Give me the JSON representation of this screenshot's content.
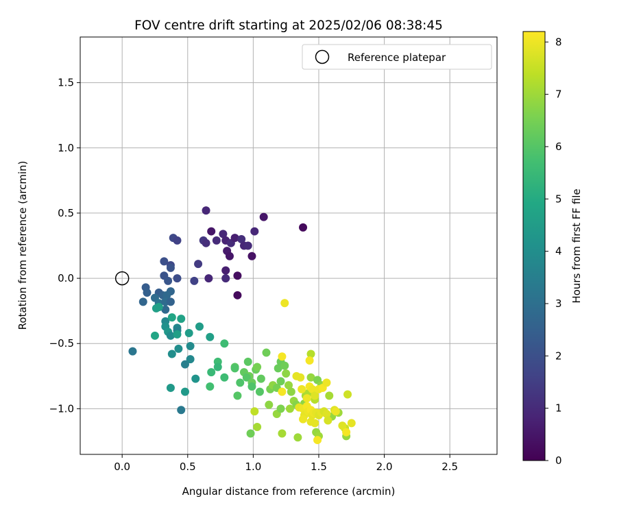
{
  "chart_data": {
    "type": "scatter",
    "title": "FOV centre drift starting at 2025/02/06 08:38:45",
    "xlabel": "Angular distance from reference (arcmin)",
    "ylabel": "Rotation from reference (arcmin)",
    "xlim": [
      -0.32,
      2.86
    ],
    "ylim": [
      -1.35,
      1.85
    ],
    "xticks": [
      "0.0",
      "0.5",
      "1.0",
      "1.5",
      "2.0",
      "2.5"
    ],
    "xtick_values": [
      0.0,
      0.5,
      1.0,
      1.5,
      2.0,
      2.5
    ],
    "yticks": [
      "−1.0",
      "−0.5",
      "0.0",
      "0.5",
      "1.0",
      "1.5"
    ],
    "ytick_values": [
      -1.0,
      -0.5,
      0.0,
      0.5,
      1.0,
      1.5
    ],
    "grid": true,
    "legend": {
      "placement": "top-right",
      "entries": [
        "Reference platepar"
      ]
    },
    "reference_point": {
      "name": "Reference platepar",
      "x": 0.0,
      "y": 0.0
    },
    "colorbar": {
      "label": "Hours from first FF file",
      "colormap": "viridis",
      "range": [
        0,
        8.2
      ],
      "ticks": [
        "0",
        "1",
        "2",
        "3",
        "4",
        "5",
        "6",
        "7",
        "8"
      ],
      "tick_values": [
        0,
        1,
        2,
        3,
        4,
        5,
        6,
        7,
        8
      ],
      "colormap_stops": [
        "#440154",
        "#482475",
        "#414487",
        "#355f8d",
        "#2a788e",
        "#21918c",
        "#22a884",
        "#44bf70",
        "#7ad151",
        "#bddf26",
        "#fde725"
      ]
    },
    "points": [
      [
        0.64,
        0.52,
        0.9
      ],
      [
        1.08,
        0.47,
        0.5
      ],
      [
        1.38,
        0.39,
        0.2
      ],
      [
        0.68,
        0.36,
        0.5
      ],
      [
        0.77,
        0.34,
        0.9
      ],
      [
        0.72,
        0.29,
        1.0
      ],
      [
        0.79,
        0.29,
        0.8
      ],
      [
        0.83,
        0.27,
        1.0
      ],
      [
        0.86,
        0.31,
        0.7
      ],
      [
        0.91,
        0.3,
        1.1
      ],
      [
        0.93,
        0.25,
        0.9
      ],
      [
        0.96,
        0.25,
        1.0
      ],
      [
        1.01,
        0.36,
        0.9
      ],
      [
        0.62,
        0.29,
        1.3
      ],
      [
        0.64,
        0.27,
        1.1
      ],
      [
        0.8,
        0.21,
        0.6
      ],
      [
        0.82,
        0.17,
        0.5
      ],
      [
        0.99,
        0.17,
        0.4
      ],
      [
        0.79,
        0.06,
        0.7
      ],
      [
        0.66,
        0.0,
        0.9
      ],
      [
        0.79,
        0.0,
        1.0
      ],
      [
        0.88,
        0.02,
        0.3
      ],
      [
        0.88,
        -0.13,
        0.2
      ],
      [
        0.58,
        0.11,
        1.4
      ],
      [
        0.55,
        -0.02,
        1.6
      ],
      [
        0.39,
        0.31,
        1.8
      ],
      [
        0.42,
        0.29,
        1.6
      ],
      [
        0.32,
        0.13,
        2.0
      ],
      [
        0.37,
        0.1,
        1.8
      ],
      [
        0.37,
        0.08,
        2.1
      ],
      [
        0.32,
        0.02,
        2.1
      ],
      [
        0.42,
        0.0,
        1.9
      ],
      [
        0.35,
        -0.02,
        2.2
      ],
      [
        0.18,
        -0.07,
        2.4
      ],
      [
        0.19,
        -0.11,
        2.5
      ],
      [
        0.16,
        -0.18,
        2.7
      ],
      [
        0.28,
        -0.11,
        2.4
      ],
      [
        0.25,
        -0.15,
        2.9
      ],
      [
        0.31,
        -0.13,
        2.6
      ],
      [
        0.37,
        -0.1,
        2.7
      ],
      [
        0.34,
        -0.13,
        2.8
      ],
      [
        0.28,
        -0.19,
        3.1
      ],
      [
        0.33,
        -0.18,
        2.9
      ],
      [
        0.37,
        -0.18,
        2.6
      ],
      [
        0.33,
        -0.24,
        2.8
      ],
      [
        0.28,
        -0.22,
        3.5
      ],
      [
        0.28,
        -0.22,
        4.6
      ],
      [
        0.26,
        -0.23,
        4.6
      ],
      [
        0.33,
        -0.33,
        3.8
      ],
      [
        0.38,
        -0.3,
        4.8
      ],
      [
        0.45,
        -0.31,
        4.7
      ],
      [
        0.33,
        -0.37,
        4.1
      ],
      [
        0.35,
        -0.41,
        4.3
      ],
      [
        0.42,
        -0.38,
        3.8
      ],
      [
        0.42,
        -0.4,
        3.6
      ],
      [
        0.37,
        -0.44,
        3.9
      ],
      [
        0.42,
        -0.43,
        4.6
      ],
      [
        0.25,
        -0.44,
        4.8
      ],
      [
        0.51,
        -0.42,
        4.5
      ],
      [
        0.59,
        -0.37,
        4.5
      ],
      [
        0.67,
        -0.45,
        4.6
      ],
      [
        0.52,
        -0.52,
        3.9
      ],
      [
        0.43,
        -0.54,
        4.0
      ],
      [
        0.38,
        -0.58,
        4.0
      ],
      [
        0.08,
        -0.56,
        3.2
      ],
      [
        0.52,
        -0.62,
        3.8
      ],
      [
        0.48,
        -0.66,
        3.5
      ],
      [
        0.56,
        -0.77,
        4.2
      ],
      [
        0.37,
        -0.84,
        4.4
      ],
      [
        0.48,
        -0.87,
        4.4
      ],
      [
        0.45,
        -1.01,
        3.3
      ],
      [
        0.73,
        -0.64,
        5.6
      ],
      [
        0.73,
        -0.68,
        5.4
      ],
      [
        0.68,
        -0.72,
        5.5
      ],
      [
        0.78,
        -0.5,
        5.6
      ],
      [
        0.67,
        -0.83,
        5.7
      ],
      [
        0.78,
        -0.76,
        5.6
      ],
      [
        0.86,
        -0.68,
        6.1
      ],
      [
        0.86,
        -0.69,
        5.9
      ],
      [
        0.9,
        -0.8,
        5.9
      ],
      [
        0.88,
        -0.9,
        6.0
      ],
      [
        0.96,
        -0.64,
        6.1
      ],
      [
        0.93,
        -0.72,
        6.2
      ],
      [
        0.97,
        -0.75,
        6.4
      ],
      [
        0.95,
        -0.76,
        6.0
      ],
      [
        0.99,
        -0.8,
        6.3
      ],
      [
        0.99,
        -0.83,
        5.9
      ],
      [
        1.02,
        -0.7,
        6.3
      ],
      [
        1.03,
        -0.68,
        6.5
      ],
      [
        1.05,
        -0.87,
        6.0
      ],
      [
        1.06,
        -0.77,
        6.2
      ],
      [
        1.1,
        -0.57,
        6.4
      ],
      [
        1.13,
        -0.85,
        6.5
      ],
      [
        1.15,
        -0.82,
        6.8
      ],
      [
        1.18,
        -0.84,
        6.5
      ],
      [
        1.21,
        -0.79,
        6.4
      ],
      [
        1.19,
        -0.69,
        6.3
      ],
      [
        1.21,
        -0.64,
        6.3
      ],
      [
        1.24,
        -0.67,
        6.4
      ],
      [
        1.25,
        -0.73,
        6.8
      ],
      [
        1.12,
        -0.97,
        6.8
      ],
      [
        1.18,
        -1.04,
        6.9
      ],
      [
        1.21,
        -1.0,
        6.6
      ],
      [
        1.27,
        -0.82,
        6.9
      ],
      [
        1.29,
        -0.87,
        6.8
      ],
      [
        1.31,
        -0.94,
        6.9
      ],
      [
        1.28,
        -1.0,
        7.0
      ],
      [
        1.33,
        -0.97,
        6.7
      ],
      [
        0.98,
        -1.19,
        6.4
      ],
      [
        1.01,
        -1.02,
        7.4
      ],
      [
        1.03,
        -1.14,
        7.1
      ],
      [
        1.22,
        -1.19,
        7.1
      ],
      [
        1.34,
        -1.22,
        7.0
      ],
      [
        1.39,
        -0.96,
        6.8
      ],
      [
        1.44,
        -0.58,
        7.3
      ],
      [
        1.4,
        -0.9,
        7.1
      ],
      [
        1.42,
        -0.88,
        7.2
      ],
      [
        1.44,
        -0.76,
        6.9
      ],
      [
        1.47,
        -0.93,
        7.3
      ],
      [
        1.49,
        -0.78,
        6.6
      ],
      [
        1.52,
        -0.82,
        6.8
      ],
      [
        1.48,
        -1.18,
        6.9
      ],
      [
        1.5,
        -1.21,
        7.0
      ],
      [
        1.58,
        -0.9,
        7.1
      ],
      [
        1.6,
        -1.06,
        6.9
      ],
      [
        1.65,
        -1.03,
        7.0
      ],
      [
        1.71,
        -1.21,
        6.9
      ],
      [
        1.72,
        -0.89,
        7.6
      ],
      [
        1.7,
        -1.15,
        7.5
      ],
      [
        1.24,
        -0.19,
        8.0
      ],
      [
        1.22,
        -0.6,
        8.1
      ],
      [
        1.43,
        -0.63,
        8.1
      ],
      [
        1.22,
        -0.87,
        8.1
      ],
      [
        1.33,
        -0.75,
        7.9
      ],
      [
        1.36,
        -0.76,
        7.9
      ],
      [
        1.37,
        -0.85,
        8.0
      ],
      [
        1.41,
        -0.92,
        8.0
      ],
      [
        1.43,
        -0.83,
        8.1
      ],
      [
        1.45,
        -0.85,
        8.0
      ],
      [
        1.47,
        -0.9,
        7.8
      ],
      [
        1.5,
        -0.85,
        8.0
      ],
      [
        1.53,
        -0.84,
        8.1
      ],
      [
        1.56,
        -0.8,
        8.0
      ],
      [
        1.35,
        -0.99,
        7.9
      ],
      [
        1.38,
        -1.0,
        8.0
      ],
      [
        1.39,
        -1.05,
        7.9
      ],
      [
        1.41,
        -0.98,
        8.1
      ],
      [
        1.42,
        -1.02,
        8.0
      ],
      [
        1.44,
        -1.01,
        8.1
      ],
      [
        1.45,
        -1.05,
        7.9
      ],
      [
        1.46,
        -1.03,
        8.0
      ],
      [
        1.48,
        -1.03,
        7.9
      ],
      [
        1.5,
        -1.05,
        7.8
      ],
      [
        1.52,
        -1.03,
        7.9
      ],
      [
        1.54,
        -1.02,
        7.7
      ],
      [
        1.56,
        -1.04,
        7.8
      ],
      [
        1.57,
        -1.09,
        7.7
      ],
      [
        1.62,
        -1.01,
        7.8
      ],
      [
        1.63,
        -1.02,
        8.0
      ],
      [
        1.68,
        -1.13,
        7.8
      ],
      [
        1.71,
        -1.18,
        8.1
      ],
      [
        1.75,
        -1.11,
        7.9
      ],
      [
        1.49,
        -1.24,
        8.1
      ],
      [
        1.38,
        -1.08,
        8.0
      ],
      [
        1.44,
        -1.1,
        7.9
      ],
      [
        1.47,
        -1.11,
        7.9
      ]
    ]
  }
}
